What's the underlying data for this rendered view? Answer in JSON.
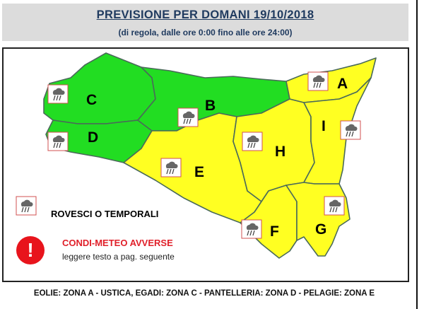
{
  "header": {
    "title": "PREVISIONE PER DOMANI 19/10/2018",
    "subtitle": "(di regola, dalle ore 0:00 fino alle ore 24:00)"
  },
  "colors": {
    "green": "#22dd22",
    "yellow": "#ffff22",
    "border": "#4a6a5a",
    "alert": "#e8141c"
  },
  "zones": [
    {
      "id": "A",
      "level": "yellow"
    },
    {
      "id": "B",
      "level": "green"
    },
    {
      "id": "C",
      "level": "green"
    },
    {
      "id": "D",
      "level": "green"
    },
    {
      "id": "E",
      "level": "yellow"
    },
    {
      "id": "F",
      "level": "yellow"
    },
    {
      "id": "G",
      "level": "yellow"
    },
    {
      "id": "H",
      "level": "yellow"
    },
    {
      "id": "I",
      "level": "yellow"
    }
  ],
  "icon": "thunderstorm-rain-icon",
  "legend": {
    "storm_label": "ROVESCI O TEMPORALI",
    "alert_title": "CONDI-METEO AVVERSE",
    "alert_text": "leggere testo a pag. seguente",
    "alert_icon": "exclamation-icon",
    "alert_glyph": "!"
  },
  "footer": "EOLIE: ZONA A - USTICA, EGADI: ZONA C - PANTELLERIA: ZONA D - PELAGIE: ZONA E"
}
